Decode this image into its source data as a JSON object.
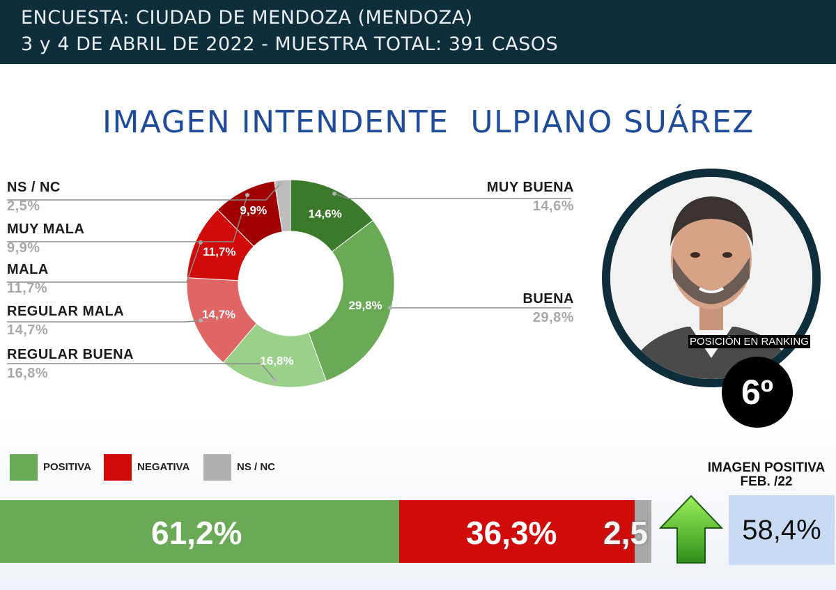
{
  "header": {
    "line1": "ENCUESTA: CIUDAD DE MENDOZA (MENDOZA)",
    "line2": "3 y 4 DE ABRIL DE 2022  - MUESTRA TOTAL: 391 CASOS"
  },
  "title": "IMAGEN INTENDENTE  ULPIANO SUÁREZ",
  "chart_data": [
    {
      "type": "pie",
      "variant": "donut",
      "slices": [
        {
          "label": "MUY BUENA",
          "value": 14.6,
          "display": "14,6%",
          "color": "#3a7a2a"
        },
        {
          "label": "BUENA",
          "value": 29.8,
          "display": "29,8%",
          "color": "#6aaa57"
        },
        {
          "label": "REGULAR BUENA",
          "value": 16.8,
          "display": "16,8%",
          "color": "#9bd08a"
        },
        {
          "label": "REGULAR MALA",
          "value": 14.7,
          "display": "14,7%",
          "color": "#e06666"
        },
        {
          "label": "MALA",
          "value": 11.7,
          "display": "11,7%",
          "color": "#d10a0a"
        },
        {
          "label": "MUY MALA",
          "value": 9.9,
          "display": "9,9%",
          "color": "#a00000"
        },
        {
          "label": "NS / NC",
          "value": 2.5,
          "display": "2,5%",
          "color": "#bdbdbd"
        }
      ]
    },
    {
      "type": "bar",
      "variant": "stacked-horizontal",
      "series": [
        {
          "name": "POSITIVA",
          "value": 61.2,
          "display": "61,2%",
          "color": "#6aaa57"
        },
        {
          "name": "NEGATIVA",
          "value": 36.3,
          "display": "36,3%",
          "color": "#d10a0a"
        },
        {
          "name": "NS / NC",
          "value": 2.5,
          "display": "2,5",
          "color": "#a9a9a9"
        }
      ]
    }
  ],
  "legend": [
    "POSITIVA",
    "NEGATIVA",
    "NS / NC"
  ],
  "ranking": {
    "label": "POSICIÓN EN RANKING",
    "value": "6º"
  },
  "imagen_positiva": {
    "title": "IMAGEN POSITIVA",
    "subtitle": "FEB. /22",
    "value": "58,4%",
    "trend": "up-arrow-icon"
  }
}
